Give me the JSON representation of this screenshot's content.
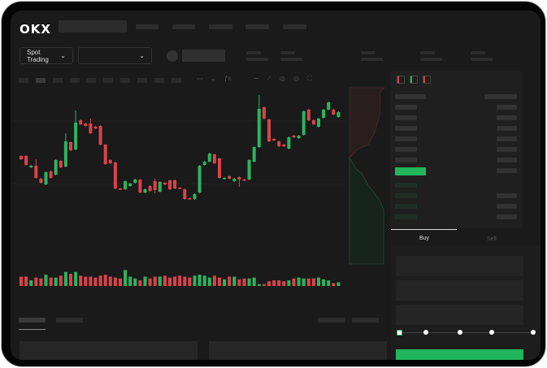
{
  "brand": {
    "logo": "OKX"
  },
  "market_selector": {
    "label": "Spot Trading",
    "chevron": "chevron-down-icon"
  },
  "pair_selector": {
    "value": "",
    "chevron": "chevron-down-icon"
  },
  "order_form": {
    "tabs": [
      {
        "label": "Buy",
        "active": true
      },
      {
        "label": "Sell",
        "active": false
      }
    ],
    "slider_percent": 0,
    "slider_stops": [
      0,
      25,
      50,
      75,
      100
    ],
    "submit_color": "#22b55c"
  },
  "colors": {
    "up": "#2db35f",
    "down": "#d9434a",
    "background": "#1a1a1a"
  },
  "candles": [
    [
      97,
      93,
      97,
      93
    ],
    [
      97,
      86,
      97,
      86
    ],
    [
      83,
      85,
      85,
      83
    ],
    [
      85,
      70,
      92,
      70
    ],
    [
      69,
      64,
      69,
      64
    ],
    [
      62,
      77,
      77,
      62
    ],
    [
      78,
      70,
      78,
      70
    ],
    [
      74,
      92,
      92,
      74
    ],
    [
      91,
      83,
      91,
      83
    ],
    [
      84,
      115,
      124,
      84
    ],
    [
      114,
      104,
      114,
      104
    ],
    [
      105,
      138,
      152,
      105
    ],
    [
      141,
      136,
      141,
      136
    ],
    [
      137,
      134,
      137,
      134
    ],
    [
      137,
      125,
      142,
      125
    ],
    [
      133,
      131,
      133,
      131
    ],
    [
      134,
      111,
      134,
      111
    ],
    [
      111,
      87,
      111,
      87
    ],
    [
      92,
      88,
      92,
      88
    ],
    [
      89,
      57,
      89,
      57
    ],
    [
      57,
      56,
      57,
      56
    ],
    [
      56,
      66,
      66,
      56
    ],
    [
      60,
      63,
      63,
      60
    ],
    [
      64,
      68,
      68,
      64
    ],
    [
      68,
      52,
      68,
      52
    ],
    [
      52,
      56,
      56,
      52
    ],
    [
      60,
      54,
      60,
      54
    ],
    [
      66,
      55,
      68,
      52
    ],
    [
      53,
      65,
      65,
      53
    ],
    [
      64,
      62,
      64,
      62
    ],
    [
      67,
      56,
      67,
      56
    ],
    [
      67,
      57,
      67,
      57
    ],
    [
      58,
      57,
      58,
      57
    ],
    [
      56,
      44,
      56,
      44
    ],
    [
      45,
      44,
      45,
      44
    ],
    [
      44,
      50,
      50,
      44
    ],
    [
      52,
      85,
      85,
      52
    ],
    [
      86,
      90,
      90,
      86
    ],
    [
      90,
      100,
      100,
      90
    ],
    [
      99,
      88,
      99,
      88
    ],
    [
      94,
      70,
      94,
      70
    ],
    [
      69,
      70,
      70,
      69
    ],
    [
      72,
      69,
      72,
      69
    ],
    [
      66,
      69,
      69,
      66
    ],
    [
      71,
      68,
      71,
      60
    ],
    [
      68,
      67,
      68,
      67
    ],
    [
      68,
      92,
      92,
      68
    ],
    [
      90,
      108,
      108,
      90
    ],
    [
      108,
      155,
      171,
      108
    ],
    [
      157,
      143,
      157,
      143
    ],
    [
      142,
      115,
      142,
      115
    ],
    [
      118,
      116,
      118,
      116
    ],
    [
      115,
      109,
      115,
      109
    ],
    [
      111,
      109,
      111,
      109
    ],
    [
      106,
      120,
      120,
      106
    ],
    [
      122,
      120,
      122,
      120
    ],
    [
      119,
      122,
      122,
      119
    ],
    [
      123,
      152,
      152,
      123
    ],
    [
      154,
      141,
      154,
      141
    ],
    [
      141,
      136,
      141,
      136
    ],
    [
      133,
      143,
      143,
      133
    ],
    [
      144,
      154,
      154,
      144
    ],
    [
      154,
      163,
      163,
      154
    ],
    [
      154,
      148,
      154,
      148
    ],
    [
      145,
      151,
      151,
      145
    ]
  ],
  "volumes": [
    10,
    10,
    6,
    9,
    8,
    12,
    9,
    9,
    11,
    15,
    13,
    15,
    11,
    10,
    10,
    9,
    11,
    12,
    10,
    9,
    8,
    17,
    10,
    8,
    6,
    10,
    8,
    10,
    10,
    11,
    9,
    10,
    11,
    10,
    9,
    11,
    12,
    11,
    9,
    11,
    9,
    7,
    10,
    10,
    7,
    8,
    8,
    9,
    2,
    2,
    5,
    6,
    6,
    5,
    6,
    8,
    9,
    8,
    8,
    8,
    9,
    7,
    6,
    3,
    4
  ]
}
